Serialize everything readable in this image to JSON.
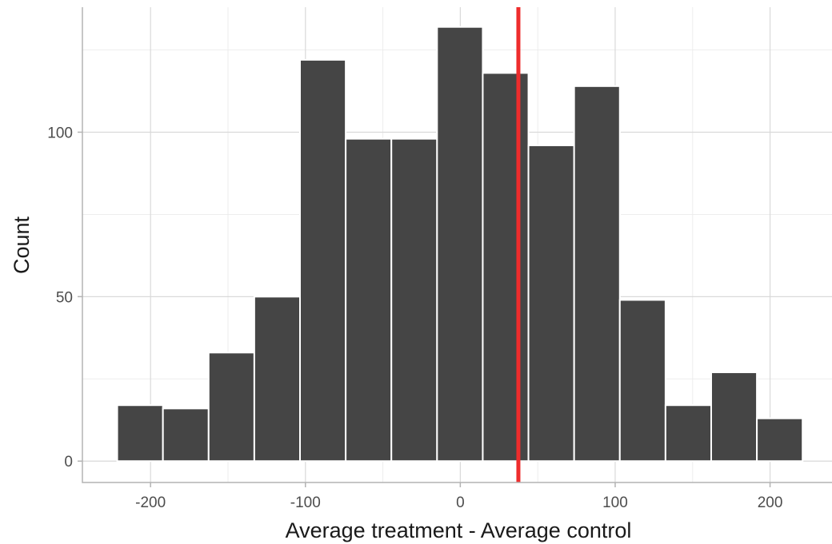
{
  "chart_data": {
    "type": "bar",
    "subtype": "histogram",
    "xlabel": "Average treatment - Average control",
    "ylabel": "Count",
    "xlim": [
      -244,
      240
    ],
    "ylim": [
      -6.5,
      138
    ],
    "x_ticks": [
      -200,
      -100,
      0,
      100,
      200
    ],
    "x_tick_labels": [
      "-200",
      "-100",
      "0",
      "100",
      "200"
    ],
    "y_ticks": [
      0,
      50,
      100
    ],
    "y_tick_labels": [
      "0",
      "50",
      "100"
    ],
    "grid": true,
    "bins": [
      {
        "x0": -221.5,
        "x1": -192.0,
        "count": 17
      },
      {
        "x0": -192.0,
        "x1": -162.5,
        "count": 16
      },
      {
        "x0": -162.5,
        "x1": -133.0,
        "count": 33
      },
      {
        "x0": -133.0,
        "x1": -103.5,
        "count": 50
      },
      {
        "x0": -103.5,
        "x1": -74.0,
        "count": 122
      },
      {
        "x0": -74.0,
        "x1": -44.5,
        "count": 98
      },
      {
        "x0": -44.5,
        "x1": -15.0,
        "count": 98
      },
      {
        "x0": -15.0,
        "x1": 14.5,
        "count": 132
      },
      {
        "x0": 14.5,
        "x1": 44.0,
        "count": 118
      },
      {
        "x0": 44.0,
        "x1": 73.5,
        "count": 96
      },
      {
        "x0": 73.5,
        "x1": 103.0,
        "count": 114
      },
      {
        "x0": 103.0,
        "x1": 132.5,
        "count": 49
      },
      {
        "x0": 132.5,
        "x1": 162.0,
        "count": 17
      },
      {
        "x0": 162.0,
        "x1": 191.5,
        "count": 27
      },
      {
        "x0": 191.5,
        "x1": 221.0,
        "count": 13
      }
    ],
    "reference_line": {
      "x": 37.5,
      "color": "#ee2c2c"
    },
    "bar_color": "#454545"
  }
}
